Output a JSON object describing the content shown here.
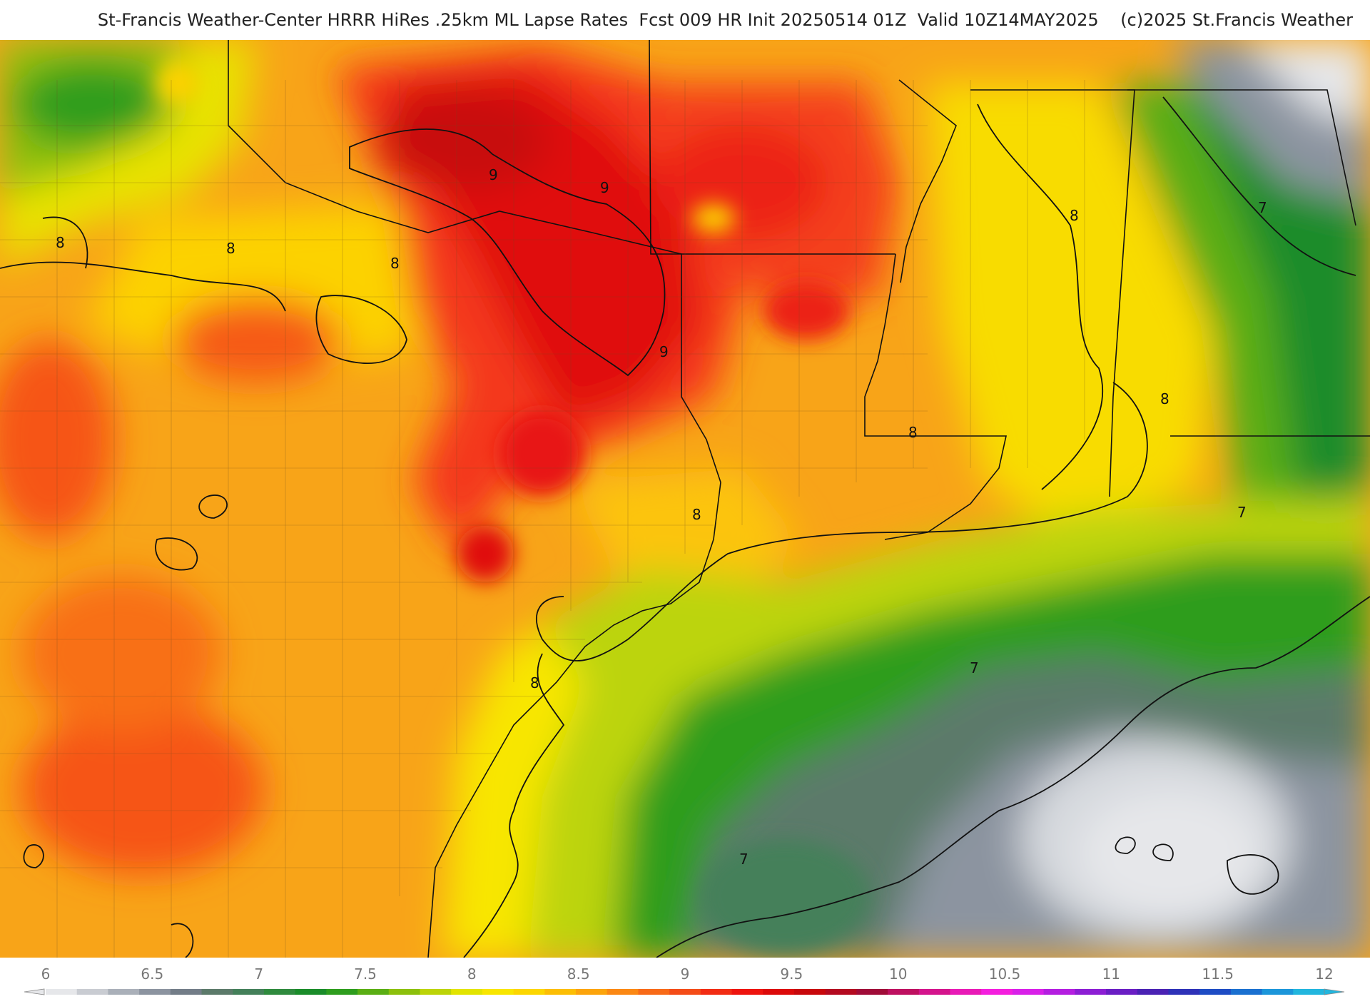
{
  "header": {
    "title": "St-Francis Weather-Center HRRR HiRes .25km ML Lapse Rates  Fcst 009 HR Init 20250514 01Z  Valid 10Z14MAY2025    (c)2025 St.Francis Weather"
  },
  "map": {
    "contour_labels": [
      "9",
      "9",
      "9",
      "8",
      "8",
      "8",
      "8",
      "8",
      "8",
      "8",
      "8",
      "7",
      "7",
      "7",
      "7"
    ]
  },
  "colorbar": {
    "ticks": [
      "6",
      "6.5",
      "7",
      "7.5",
      "8",
      "8.5",
      "9",
      "9.5",
      "10",
      "10.5",
      "11",
      "11.5",
      "12"
    ],
    "colors": [
      "#e6e7ea",
      "#c9ccd2",
      "#aab0b9",
      "#8c94a0",
      "#737d88",
      "#5c7a6a",
      "#44805a",
      "#2f8a3e",
      "#1a8c2a",
      "#2e9d1e",
      "#5aae14",
      "#8cc00c",
      "#bcd408",
      "#e2e400",
      "#f8e600",
      "#fcd600",
      "#fcbe04",
      "#fca40c",
      "#fb8814",
      "#f86a18",
      "#f44c18",
      "#f22c14",
      "#ee140e",
      "#dc0a0a",
      "#c8080c",
      "#b40a20",
      "#a00c38",
      "#be1060",
      "#d4148c",
      "#e81ab6",
      "#f41ede",
      "#d820e8",
      "#b41ee0",
      "#8c1ed4",
      "#6a1ec4",
      "#4a22b4",
      "#2e32b8",
      "#1e4cc4",
      "#1a70d0",
      "#1c96da",
      "#22b6de"
    ]
  }
}
